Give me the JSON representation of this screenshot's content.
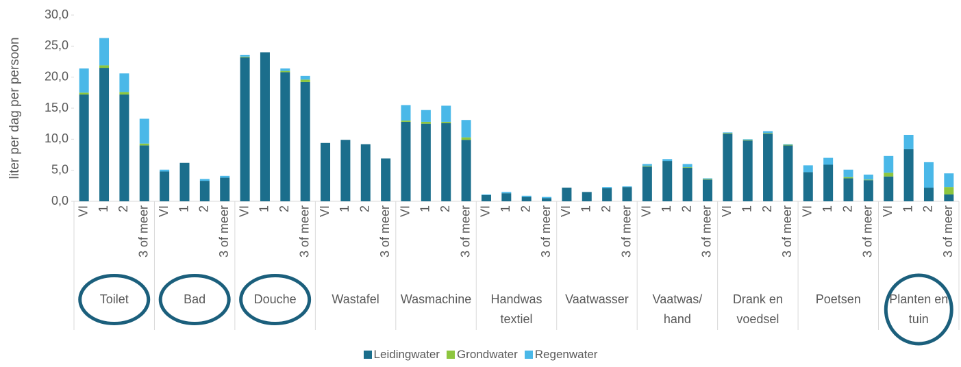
{
  "chart_data": {
    "type": "stacked_bar",
    "y_label": "liter per dag per persoon",
    "groups": [
      "Toilet",
      "Bad",
      "Douche",
      "Wastafel",
      "Wasmachine",
      "Handwas textiel",
      "Vaatwasser",
      "Vaatwas/ hand",
      "Drank en voedsel",
      "Poetsen",
      "Planten en tuin"
    ],
    "highlight": [
      true,
      true,
      true,
      false,
      false,
      false,
      false,
      false,
      false,
      false,
      true
    ],
    "categories": [
      "VI",
      "1",
      "2",
      "3 of meer",
      "VI",
      "1",
      "2",
      "3 of meer",
      "VI",
      "1",
      "2",
      "3 of meer",
      "VI",
      "1",
      "2",
      "3 of meer",
      "VI",
      "1",
      "2",
      "3 of meer",
      "VI",
      "1",
      "2",
      "3 of meer",
      "VI",
      "1",
      "2",
      "3 of meer",
      "VI",
      "1",
      "2",
      "3 of meer",
      "VI",
      "1",
      "2",
      "3 of meer",
      "VI",
      "1",
      "2",
      "3 of meer",
      "VI",
      "1",
      "2",
      "3 of meer"
    ],
    "series": [
      {
        "name": "Leidingwater",
        "color": "#1b6e8c",
        "values": [
          17.2,
          21.5,
          17.2,
          9.0,
          4.8,
          6.2,
          3.3,
          3.8,
          23.2,
          24.0,
          20.8,
          19.2,
          9.4,
          9.9,
          9.2,
          6.9,
          12.8,
          12.5,
          12.6,
          9.9,
          1.0,
          1.3,
          0.7,
          0.5,
          2.2,
          1.5,
          2.1,
          2.3,
          5.6,
          6.5,
          5.4,
          3.5,
          10.9,
          9.8,
          10.9,
          9.0,
          4.7,
          5.9,
          3.7,
          3.4,
          4.0,
          8.4,
          2.2,
          1.1
        ]
      },
      {
        "name": "Grondwater",
        "color": "#8dc63f",
        "values": [
          0.3,
          0.4,
          0.4,
          0.3,
          0,
          0,
          0,
          0,
          0.1,
          0,
          0.2,
          0.4,
          0,
          0,
          0,
          0,
          0.2,
          0.3,
          0.2,
          0.4,
          0,
          0,
          0,
          0,
          0,
          0,
          0,
          0,
          0.1,
          0,
          0.1,
          0.1,
          0.1,
          0.1,
          0.1,
          0.1,
          0,
          0,
          0.2,
          0.1,
          0.6,
          0,
          0,
          1.2
        ]
      },
      {
        "name": "Regenwater",
        "color": "#4ab8e8",
        "values": [
          3.9,
          4.4,
          3.0,
          4.0,
          0.3,
          0,
          0.3,
          0.3,
          0.3,
          0,
          0.4,
          0.6,
          0,
          0,
          0,
          0,
          2.5,
          1.9,
          2.6,
          2.8,
          0.1,
          0.2,
          0.2,
          0.2,
          0,
          0,
          0.2,
          0.1,
          0.3,
          0.3,
          0.5,
          0.1,
          0.1,
          0.1,
          0.3,
          0.1,
          1.1,
          1.1,
          1.2,
          0.8,
          2.7,
          2.3,
          4.1,
          2.2
        ]
      }
    ],
    "ylim": [
      0,
      30
    ],
    "yticks": [
      {
        "value": 0,
        "label": "0,0"
      },
      {
        "value": 5,
        "label": "5,0"
      },
      {
        "value": 10,
        "label": "10,0"
      },
      {
        "value": 15,
        "label": "15,0"
      },
      {
        "value": 20,
        "label": "20,0"
      },
      {
        "value": 25,
        "label": "25,0"
      },
      {
        "value": 30,
        "label": "30,0"
      }
    ],
    "grid": false,
    "legend": "bottom"
  }
}
